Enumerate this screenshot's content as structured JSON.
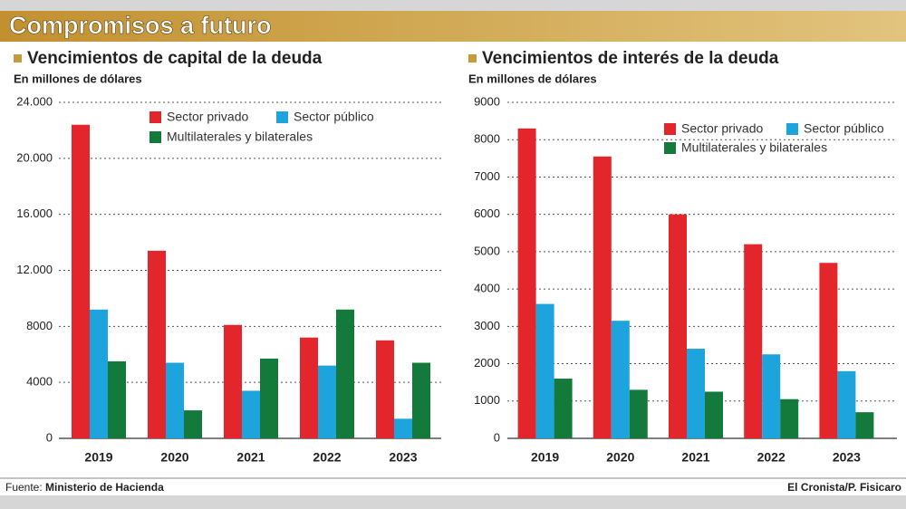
{
  "title": "Compromisos a futuro",
  "chart_data": [
    {
      "type": "bar",
      "title": "Vencimientos de capital de la deuda",
      "subtitle": "En millones de dólares",
      "categories": [
        "2019",
        "2020",
        "2021",
        "2022",
        "2023"
      ],
      "series": [
        {
          "name": "Sector privado",
          "color": "#e3262b",
          "values": [
            22400,
            13400,
            8100,
            7200,
            7000
          ]
        },
        {
          "name": "Sector público",
          "color": "#1ea4dc",
          "values": [
            9200,
            5400,
            3400,
            5200,
            1400
          ]
        },
        {
          "name": "Multilaterales y bilaterales",
          "color": "#137a3c",
          "values": [
            5500,
            2000,
            5700,
            9200,
            5400
          ]
        }
      ],
      "ylim": [
        0,
        24000
      ],
      "yticks": [
        0,
        4000,
        8000,
        {
          "value": 12000,
          "label": "12.000"
        },
        {
          "value": 16000,
          "label": "16.000"
        },
        {
          "value": 20000,
          "label": "20.000"
        },
        {
          "value": 24000,
          "label": "24.000"
        }
      ],
      "grid": true,
      "legend": "top-right"
    },
    {
      "type": "bar",
      "title": "Vencimientos de interés de la deuda",
      "subtitle": "En millones de dólares",
      "categories": [
        "2019",
        "2020",
        "2021",
        "2022",
        "2023"
      ],
      "series": [
        {
          "name": "Sector privado",
          "color": "#e3262b",
          "values": [
            8300,
            7550,
            6000,
            5200,
            4700
          ]
        },
        {
          "name": "Sector público",
          "color": "#1ea4dc",
          "values": [
            3600,
            3150,
            2400,
            2250,
            1800
          ]
        },
        {
          "name": "Multilaterales y bilaterales",
          "color": "#137a3c",
          "values": [
            1600,
            1300,
            1250,
            1050,
            700
          ]
        }
      ],
      "ylim": [
        0,
        9000
      ],
      "yticks": [
        0,
        1000,
        2000,
        3000,
        4000,
        5000,
        6000,
        7000,
        8000,
        9000
      ],
      "grid": true,
      "legend": "top-right"
    }
  ],
  "footer": {
    "source_label": "Fuente:",
    "source": "Ministerio de Hacienda",
    "credit": "El Cronista/P. Fisicaro"
  }
}
